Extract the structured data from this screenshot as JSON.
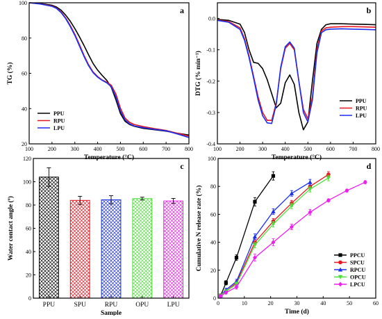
{
  "colors": {
    "black": "#000000",
    "red": "#e8141e",
    "blue": "#1a2ff0",
    "green": "#4ee03a",
    "magenta": "#ee1fee"
  },
  "chart_data": [
    {
      "panel": "a",
      "type": "line",
      "xlabel": "Temperature (°C)",
      "ylabel": "TG (%)",
      "xlim": [
        100,
        800
      ],
      "ylim": [
        20,
        100
      ],
      "xticks": [
        "100",
        "200",
        "300",
        "400",
        "500",
        "600",
        "700",
        "800"
      ],
      "yticks": [
        "20",
        "40",
        "60",
        "80",
        "100"
      ],
      "legend_position": "bottom-left",
      "series": [
        {
          "name": "PPU",
          "color": "#000000",
          "x": [
            100,
            150,
            200,
            220,
            240,
            260,
            280,
            300,
            320,
            340,
            360,
            380,
            400,
            420,
            440,
            460,
            480,
            500,
            520,
            540,
            560,
            600,
            650,
            700,
            750,
            800
          ],
          "y": [
            100,
            99.6,
            98.6,
            97.6,
            95.8,
            93.0,
            89.6,
            85.4,
            80.8,
            75.8,
            70.6,
            65.6,
            61.8,
            58.8,
            56.0,
            52.0,
            45.0,
            37.2,
            32.8,
            31.0,
            30.0,
            28.8,
            28.0,
            27.2,
            26.0,
            25.0
          ]
        },
        {
          "name": "RPU",
          "color": "#e8141e",
          "x": [
            100,
            150,
            200,
            220,
            240,
            260,
            280,
            300,
            320,
            340,
            360,
            380,
            400,
            420,
            440,
            460,
            480,
            500,
            520,
            540,
            560,
            600,
            650,
            700,
            750,
            800
          ],
          "y": [
            100,
            99.4,
            98.2,
            97.0,
            94.8,
            91.4,
            87.2,
            82.2,
            76.4,
            70.2,
            65.0,
            60.8,
            58.2,
            56.2,
            55.0,
            53.2,
            48.2,
            40.2,
            34.6,
            32.2,
            31.0,
            29.8,
            28.6,
            27.6,
            26.0,
            24.4
          ]
        },
        {
          "name": "LPU",
          "color": "#1a2ff0",
          "x": [
            100,
            150,
            200,
            220,
            240,
            260,
            280,
            300,
            320,
            340,
            360,
            380,
            400,
            420,
            440,
            460,
            480,
            500,
            520,
            540,
            560,
            600,
            650,
            700,
            750,
            800
          ],
          "y": [
            100,
            99.3,
            98.0,
            96.8,
            94.4,
            91.0,
            86.6,
            81.6,
            75.6,
            69.6,
            64.4,
            60.4,
            57.8,
            56.0,
            54.6,
            52.4,
            46.6,
            38.6,
            33.6,
            31.4,
            30.2,
            29.2,
            28.2,
            27.4,
            25.6,
            23.6
          ]
        }
      ]
    },
    {
      "panel": "b",
      "type": "line",
      "xlabel": "Temperature (°C)",
      "ylabel": "DTG (% min⁻¹)",
      "xlim": [
        100,
        800
      ],
      "ylim": [
        -0.4,
        0.05
      ],
      "xticks": [
        "100",
        "200",
        "300",
        "400",
        "500",
        "600",
        "700",
        "800"
      ],
      "yticks": [
        "-0.4",
        "-0.3",
        "-0.2",
        "-0.1",
        "0.0"
      ],
      "yticks_values": [
        -0.4,
        -0.3,
        -0.2,
        -0.1,
        0.0
      ],
      "legend_position": "bottom-right",
      "series": [
        {
          "name": "PPU",
          "color": "#000000",
          "x": [
            100,
            150,
            200,
            220,
            240,
            260,
            280,
            300,
            320,
            340,
            360,
            380,
            400,
            420,
            440,
            460,
            480,
            500,
            520,
            540,
            560,
            580,
            600,
            650,
            700,
            750,
            800
          ],
          "y": [
            -0.003,
            -0.006,
            -0.018,
            -0.045,
            -0.1,
            -0.14,
            -0.143,
            -0.16,
            -0.195,
            -0.24,
            -0.285,
            -0.27,
            -0.205,
            -0.18,
            -0.21,
            -0.3,
            -0.355,
            -0.33,
            -0.2,
            -0.08,
            -0.035,
            -0.02,
            -0.017,
            -0.017,
            -0.018,
            -0.019,
            -0.02
          ]
        },
        {
          "name": "RPU",
          "color": "#e8141e",
          "x": [
            100,
            150,
            200,
            220,
            240,
            260,
            280,
            300,
            320,
            340,
            360,
            380,
            400,
            420,
            440,
            460,
            480,
            500,
            520,
            540,
            560,
            580,
            600,
            650,
            700,
            750,
            800
          ],
          "y": [
            -0.005,
            -0.01,
            -0.03,
            -0.065,
            -0.12,
            -0.185,
            -0.25,
            -0.3,
            -0.325,
            -0.325,
            -0.27,
            -0.16,
            -0.095,
            -0.08,
            -0.1,
            -0.2,
            -0.29,
            -0.32,
            -0.25,
            -0.1,
            -0.04,
            -0.03,
            -0.028,
            -0.026,
            -0.026,
            -0.027,
            -0.028
          ]
        },
        {
          "name": "LPU",
          "color": "#1a2ff0",
          "x": [
            100,
            150,
            200,
            220,
            240,
            260,
            280,
            300,
            320,
            340,
            360,
            380,
            400,
            420,
            440,
            460,
            480,
            500,
            520,
            540,
            560,
            580,
            600,
            650,
            700,
            750,
            800
          ],
          "y": [
            -0.006,
            -0.012,
            -0.035,
            -0.07,
            -0.125,
            -0.19,
            -0.26,
            -0.31,
            -0.333,
            -0.335,
            -0.275,
            -0.155,
            -0.09,
            -0.075,
            -0.095,
            -0.2,
            -0.3,
            -0.33,
            -0.26,
            -0.11,
            -0.045,
            -0.036,
            -0.034,
            -0.033,
            -0.034,
            -0.035,
            -0.036
          ]
        }
      ]
    },
    {
      "panel": "c",
      "type": "bar",
      "xlabel": "Sample",
      "ylabel": "Water contact angle (º)",
      "ylim": [
        0,
        120
      ],
      "yticks": [
        "0",
        "20",
        "40",
        "60",
        "80",
        "100",
        "120"
      ],
      "categories": [
        "PPU",
        "SPU",
        "RPU",
        "OPU",
        "LPU"
      ],
      "values": [
        104,
        84,
        84.5,
        85.5,
        83.5
      ],
      "errors": [
        8,
        3.5,
        3.5,
        1.2,
        2.2
      ],
      "bar_colors": [
        "#000000",
        "#e8141e",
        "#1a2ff0",
        "#4ee03a",
        "#ee1fee"
      ],
      "pattern": "crosshatch"
    },
    {
      "panel": "d",
      "type": "line",
      "xlabel": "Time (d)",
      "ylabel": "Cumulative N release rate (%)",
      "xlim": [
        0,
        60
      ],
      "ylim": [
        0,
        100
      ],
      "xticks": [
        "0",
        "10",
        "20",
        "30",
        "40",
        "50",
        "60"
      ],
      "yticks": [
        "0",
        "20",
        "40",
        "60",
        "80",
        "100"
      ],
      "legend_position": "bottom-right",
      "series": [
        {
          "name": "PPCU",
          "color": "#000000",
          "marker": "square",
          "x": [
            1,
            3,
            7,
            14,
            21
          ],
          "y": [
            2,
            11,
            29,
            69,
            87.5
          ],
          "err": [
            1,
            1.5,
            2,
            3,
            3
          ]
        },
        {
          "name": "SPCU",
          "color": "#e8141e",
          "marker": "circle",
          "x": [
            1,
            3,
            7,
            14,
            21,
            28,
            35,
            42
          ],
          "y": [
            2,
            5,
            11,
            40,
            55,
            68,
            80,
            88.5
          ],
          "err": [
            1,
            1,
            1.5,
            2,
            2,
            2,
            2,
            2
          ]
        },
        {
          "name": "RPCU",
          "color": "#1a2ff0",
          "marker": "triangle",
          "x": [
            1,
            3,
            7,
            14,
            21,
            28,
            35
          ],
          "y": [
            2,
            6,
            12,
            44,
            62,
            75,
            83
          ],
          "err": [
            1,
            1,
            1.5,
            2,
            2,
            2,
            2
          ]
        },
        {
          "name": "OPCU",
          "color": "#4ee03a",
          "marker": "triangle-down",
          "x": [
            1,
            3,
            7,
            14,
            21,
            28,
            35,
            42
          ],
          "y": [
            2,
            5,
            10,
            38,
            53,
            66,
            78,
            86
          ],
          "err": [
            1,
            1,
            1.5,
            2,
            2,
            2,
            2,
            2
          ]
        },
        {
          "name": "LPCU",
          "color": "#ee1fee",
          "marker": "diamond",
          "x": [
            1,
            3,
            7,
            14,
            21,
            28,
            35,
            42,
            49,
            56
          ],
          "y": [
            1.5,
            4,
            8,
            29,
            40,
            51,
            61.5,
            70,
            77,
            83
          ],
          "err": [
            1,
            1,
            1.5,
            2.5,
            2.5,
            2,
            2,
            1,
            1,
            1
          ]
        }
      ]
    }
  ]
}
